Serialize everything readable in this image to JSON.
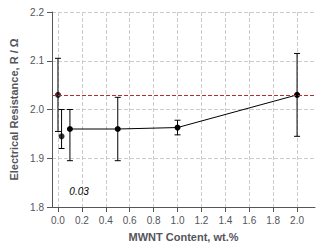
{
  "chart_data": {
    "type": "scatter",
    "xlabel": "MWNT Content, wt.%",
    "ylabel": "Electrical Resistance, R / Ω",
    "series": [
      {
        "type": "scatter",
        "marker": "circle",
        "color": "black",
        "x": [
          0.0,
          0.03
        ],
        "values": [
          2.03,
          1.945
        ],
        "error_upper": [
          0.075,
          0.055
        ],
        "error_lower": [
          0.075,
          0.025
        ]
      },
      {
        "type": "line",
        "marker": "circle",
        "color": "black",
        "x": [
          0.1,
          0.5,
          1.0,
          2.0
        ],
        "values": [
          1.96,
          1.96,
          1.963,
          2.03
        ],
        "error_upper": [
          0.04,
          0.065,
          0.015,
          0.085
        ],
        "error_lower": [
          0.065,
          0.065,
          0.015,
          0.085
        ]
      }
    ],
    "reference_lines": [
      {
        "y": 2.03,
        "color": "#b03030",
        "line_style": "dashed"
      }
    ],
    "annotations": [
      {
        "text": "0.03",
        "x": 0.095,
        "y": 1.822
      }
    ],
    "xlim": [
      -0.05,
      2.15
    ],
    "ylim": [
      1.8,
      2.2
    ],
    "xticks": [
      {
        "value": 0.0,
        "label": "0.0"
      },
      0.2,
      0.4,
      0.6,
      0.8,
      {
        "value": 1.0,
        "label": "1.0"
      },
      1.2,
      1.4,
      1.6,
      1.8,
      {
        "value": 2.0,
        "label": "2.0"
      }
    ],
    "yticks": [
      1.8,
      1.9,
      {
        "value": 2.0,
        "label": "2.0"
      },
      2.1,
      2.2
    ],
    "grid": true
  }
}
